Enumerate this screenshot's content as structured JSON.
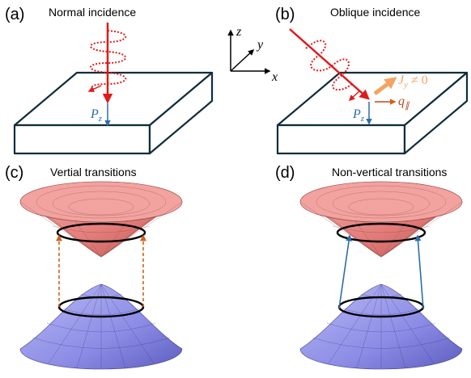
{
  "panels": [
    {
      "label": "(a)",
      "title": "Normal incidence"
    },
    {
      "label": "(b)",
      "title": "Oblique incidence"
    },
    {
      "label": "(c)",
      "title": "Vertial transitions"
    },
    {
      "label": "(d)",
      "title": "Non-vertical transitions"
    }
  ],
  "polarization": {
    "symbol": "P",
    "subscript": "z"
  },
  "axes": {
    "z": "z",
    "y": "y",
    "x": "x"
  },
  "current": {
    "symbol": "J",
    "subscript": "y",
    "relation": " ≠ 0"
  },
  "momentum": {
    "symbol": "q",
    "subscript": "∥"
  }
}
